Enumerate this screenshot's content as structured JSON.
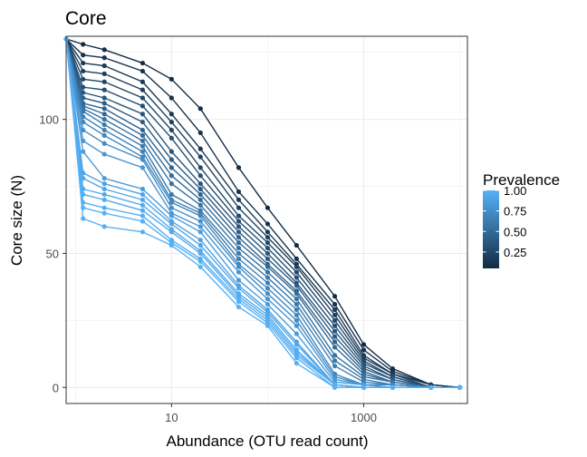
{
  "chart_data": {
    "type": "line",
    "title": "Core",
    "xlabel": "Abundance (OTU read count)",
    "ylabel": "Core size (N)",
    "x_scale": "log10",
    "xlim": [
      0.8,
      12000
    ],
    "ylim": [
      -6,
      131
    ],
    "x_ticks": [
      10,
      1000
    ],
    "y_ticks": [
      0,
      50,
      100
    ],
    "grid": true,
    "legend": {
      "title": "Prevalence",
      "position": "right",
      "labels": [
        "1.00",
        "0.75",
        "0.50",
        "0.25"
      ],
      "label_values": [
        1.0,
        0.75,
        0.5,
        0.25
      ],
      "range": [
        0.05,
        1.0
      ],
      "color_low": "#132B43",
      "color_high": "#56B1F7"
    },
    "x": [
      0.8,
      1.2,
      2,
      5,
      10,
      20,
      50,
      100,
      200,
      500,
      1000,
      2000,
      5000,
      10000
    ],
    "series": [
      {
        "prevalence": 0.05,
        "values": [
          130,
          128,
          126,
          121,
          115,
          104,
          82,
          67,
          53,
          34,
          16,
          7,
          1,
          0
        ]
      },
      {
        "prevalence": 0.1,
        "values": [
          130,
          124,
          123,
          118,
          108,
          95,
          73,
          61,
          48,
          31,
          14,
          6,
          1,
          0
        ]
      },
      {
        "prevalence": 0.15,
        "values": [
          130,
          121,
          120,
          114,
          102,
          89,
          70,
          58,
          46,
          29,
          12,
          5,
          1,
          0
        ]
      },
      {
        "prevalence": 0.2,
        "values": [
          130,
          118,
          117,
          111,
          99,
          86,
          67,
          56,
          45,
          27,
          11,
          5,
          0,
          0
        ]
      },
      {
        "prevalence": 0.25,
        "values": [
          130,
          115,
          114,
          108,
          96,
          82,
          64,
          54,
          43,
          25,
          10,
          4,
          0,
          0
        ]
      },
      {
        "prevalence": 0.3,
        "values": [
          130,
          112,
          111,
          105,
          93,
          79,
          62,
          52,
          41,
          23,
          9,
          4,
          0,
          0
        ]
      },
      {
        "prevalence": 0.35,
        "values": [
          130,
          110,
          108,
          102,
          88,
          76,
          60,
          50,
          39,
          21,
          8,
          3,
          0,
          0
        ]
      },
      {
        "prevalence": 0.4,
        "values": [
          130,
          108,
          106,
          99,
          85,
          74,
          58,
          48,
          38,
          19,
          7,
          3,
          0,
          0
        ]
      },
      {
        "prevalence": 0.45,
        "values": [
          130,
          106,
          104,
          96,
          82,
          72,
          56,
          46,
          36,
          17,
          6,
          2,
          0,
          0
        ]
      },
      {
        "prevalence": 0.5,
        "values": [
          130,
          105,
          102,
          94,
          79,
          70,
          54,
          45,
          35,
          15,
          5,
          2,
          0,
          0
        ]
      },
      {
        "prevalence": 0.55,
        "values": [
          130,
          104,
          100,
          92,
          76,
          68,
          52,
          43,
          33,
          12,
          4,
          2,
          0,
          0
        ]
      },
      {
        "prevalence": 0.6,
        "values": [
          130,
          103,
          98,
          90,
          72,
          66,
          50,
          41,
          31,
          10,
          3,
          1,
          0,
          0
        ]
      },
      {
        "prevalence": 0.65,
        "values": [
          130,
          101,
          96,
          88,
          70,
          65,
          48,
          39,
          29,
          8,
          2,
          1,
          0,
          0
        ]
      },
      {
        "prevalence": 0.7,
        "values": [
          130,
          99,
          94,
          86,
          69,
          64,
          46,
          37,
          27,
          5,
          1,
          1,
          0,
          0
        ]
      },
      {
        "prevalence": 0.75,
        "values": [
          130,
          96,
          91,
          85,
          67,
          62,
          45,
          35,
          25,
          4,
          1,
          0,
          0,
          0
        ]
      },
      {
        "prevalence": 0.8,
        "values": [
          130,
          92,
          87,
          82,
          65,
          60,
          43,
          33,
          23,
          3,
          1,
          0,
          0,
          0
        ]
      },
      {
        "prevalence": 0.85,
        "values": [
          130,
          88,
          78,
          74,
          64,
          58,
          40,
          31,
          20,
          2,
          1,
          0,
          0,
          0
        ]
      },
      {
        "prevalence": 0.9,
        "values": [
          130,
          80,
          76,
          72,
          62,
          55,
          38,
          29,
          17,
          1,
          0,
          0,
          0,
          0
        ]
      },
      {
        "prevalence": 0.92,
        "values": [
          130,
          78,
          74,
          70,
          61,
          53,
          37,
          28,
          16,
          1,
          0,
          0,
          0,
          0
        ]
      },
      {
        "prevalence": 0.94,
        "values": [
          130,
          74,
          72,
          68,
          59,
          51,
          35,
          27,
          14,
          1,
          0,
          0,
          0,
          0
        ]
      },
      {
        "prevalence": 0.96,
        "values": [
          130,
          72,
          70,
          66,
          58,
          50,
          34,
          26,
          13,
          1,
          0,
          0,
          0,
          0
        ]
      },
      {
        "prevalence": 0.98,
        "values": [
          130,
          69,
          67,
          64,
          55,
          48,
          33,
          25,
          12,
          1,
          0,
          0,
          0,
          0
        ]
      },
      {
        "prevalence": 0.99,
        "values": [
          130,
          67,
          65,
          62,
          54,
          47,
          32,
          24,
          11,
          0,
          0,
          0,
          0,
          0
        ]
      },
      {
        "prevalence": 1.0,
        "values": [
          130,
          63,
          60,
          58,
          53,
          45,
          30,
          23,
          9,
          0,
          0,
          0,
          0,
          0
        ]
      }
    ]
  }
}
